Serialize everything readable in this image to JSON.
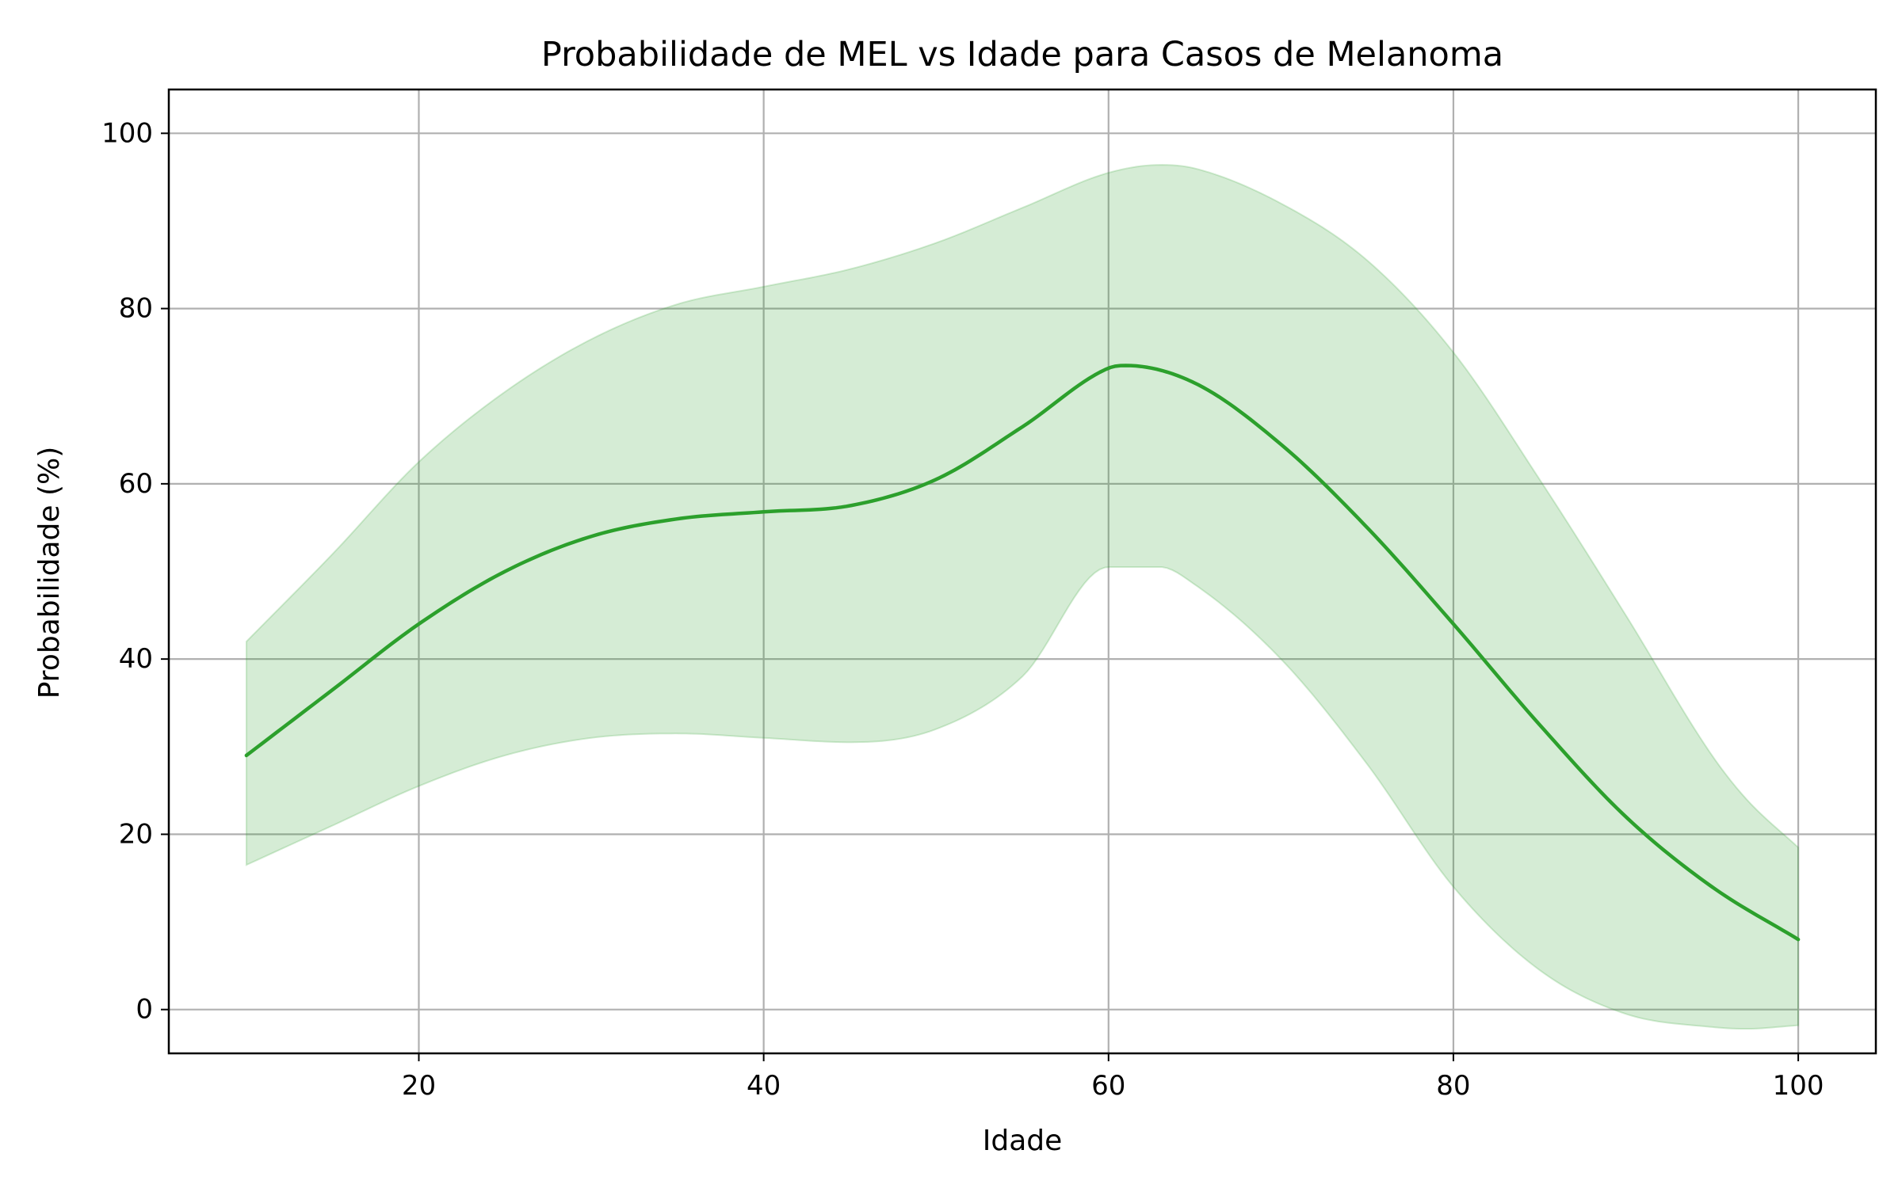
{
  "chart_data": {
    "type": "line",
    "title": "Probabilidade de MEL vs Idade para Casos de Melanoma",
    "xlabel": "Idade",
    "ylabel": "Probabilidade (%)",
    "xlim": [
      5.5,
      104.5
    ],
    "ylim": [
      -5,
      105
    ],
    "xticks": [
      20,
      40,
      60,
      80,
      100
    ],
    "yticks": [
      0,
      20,
      40,
      60,
      80,
      100
    ],
    "xtick_labels": [
      "20",
      "40",
      "60",
      "80",
      "100"
    ],
    "ytick_labels": [
      "0",
      "20",
      "40",
      "60",
      "80",
      "100"
    ],
    "grid": true,
    "colors": {
      "line": "#2ca02c",
      "band": "#2ca02c"
    },
    "series": [
      {
        "x": [
          10,
          15,
          20,
          25,
          30,
          35,
          40,
          45,
          50,
          55,
          60,
          61,
          65,
          70,
          75,
          80,
          85,
          90,
          95,
          100
        ],
        "values": [
          29,
          36.5,
          44,
          50,
          54,
          56,
          56.8,
          57.5,
          60.5,
          66.5,
          73.2,
          73.5,
          71.5,
          64.5,
          55,
          44,
          32.5,
          22,
          14,
          8
        ]
      }
    ],
    "band": {
      "x": [
        10,
        15,
        20,
        25,
        30,
        35,
        40,
        45,
        50,
        55,
        60,
        63,
        65,
        70,
        75,
        80,
        85,
        90,
        95,
        97,
        100
      ],
      "lower": [
        16.5,
        21,
        25.5,
        29,
        31,
        31.5,
        31,
        30.5,
        32,
        38,
        50.5,
        50.5,
        48.5,
        40,
        28,
        14,
        4.5,
        -0.5,
        -2,
        -2.2,
        -1.8
      ],
      "upper": [
        42,
        52,
        62.5,
        70.5,
        76.5,
        80.5,
        82.5,
        84.5,
        87.5,
        91.5,
        95.5,
        96.4,
        96,
        92,
        85.5,
        75,
        60.5,
        45,
        29,
        24,
        18.5
      ]
    }
  }
}
